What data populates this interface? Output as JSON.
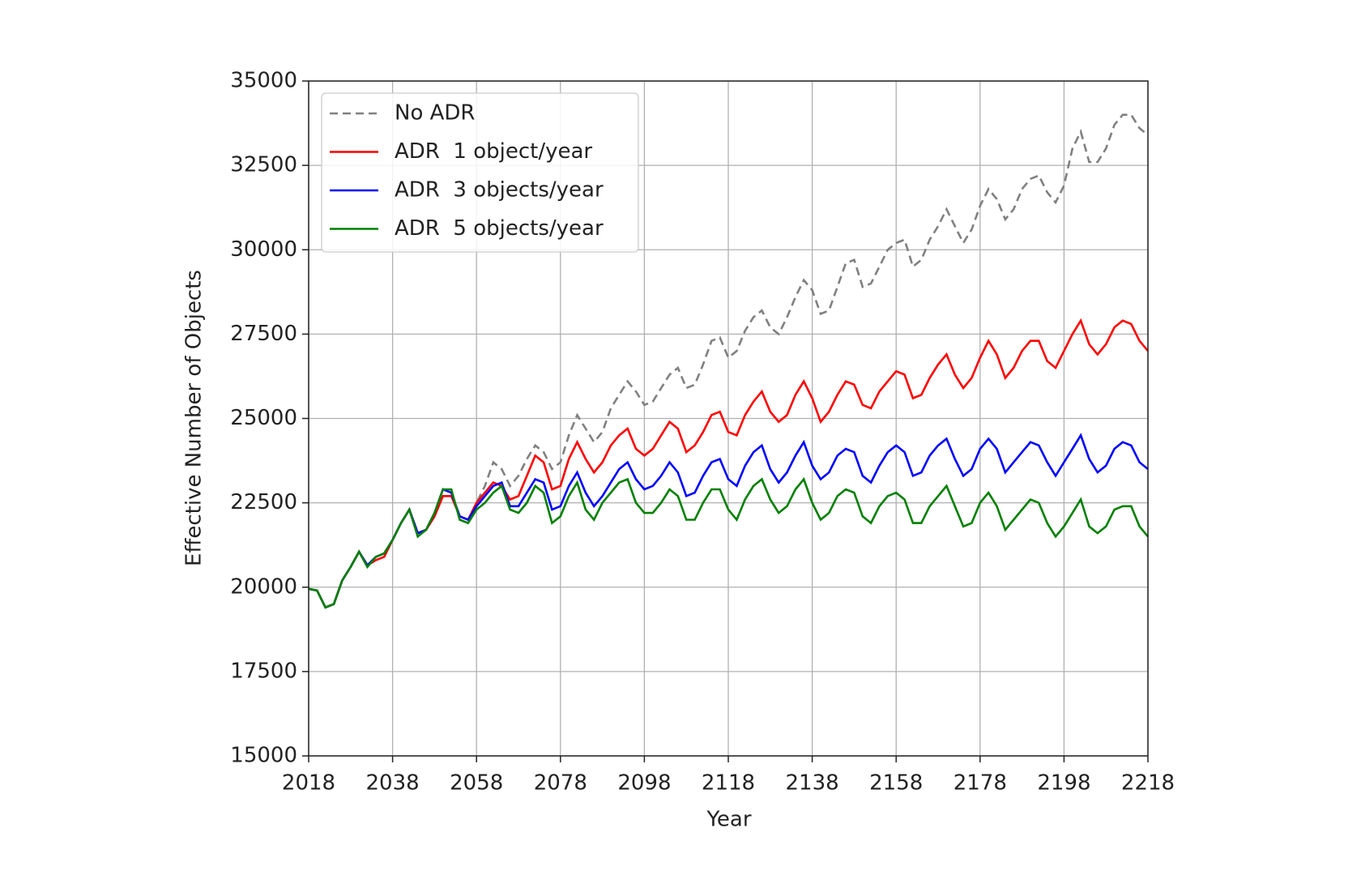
{
  "chart_data": {
    "type": "line",
    "x_label": "Year",
    "y_label": "Effective Number of Objects",
    "x": [
      2018,
      2020,
      2022,
      2024,
      2026,
      2028,
      2030,
      2032,
      2034,
      2036,
      2038,
      2040,
      2042,
      2044,
      2046,
      2048,
      2050,
      2052,
      2054,
      2056,
      2058,
      2060,
      2062,
      2064,
      2066,
      2068,
      2070,
      2072,
      2074,
      2076,
      2078,
      2080,
      2082,
      2084,
      2086,
      2088,
      2090,
      2092,
      2094,
      2096,
      2098,
      2100,
      2102,
      2104,
      2106,
      2108,
      2110,
      2112,
      2114,
      2116,
      2118,
      2120,
      2122,
      2124,
      2126,
      2128,
      2130,
      2132,
      2134,
      2136,
      2138,
      2140,
      2142,
      2144,
      2146,
      2148,
      2150,
      2152,
      2154,
      2156,
      2158,
      2160,
      2162,
      2164,
      2166,
      2168,
      2170,
      2172,
      2174,
      2176,
      2178,
      2180,
      2182,
      2184,
      2186,
      2188,
      2190,
      2192,
      2194,
      2196,
      2198,
      2200,
      2202,
      2204,
      2206,
      2208,
      2210,
      2212,
      2214,
      2216,
      2218
    ],
    "series": [
      {
        "name": "No ADR",
        "color": "#808080",
        "linestyle": "dashed",
        "values": [
          19950,
          19900,
          19400,
          19500,
          20200,
          20600,
          21050,
          20650,
          20900,
          21000,
          21400,
          21900,
          22300,
          21600,
          21700,
          22200,
          22900,
          22800,
          22100,
          22000,
          22500,
          23000,
          23700,
          23500,
          23000,
          23300,
          23800,
          24200,
          24000,
          23500,
          23700,
          24500,
          25100,
          24700,
          24300,
          24600,
          25300,
          25700,
          26100,
          25800,
          25400,
          25500,
          25900,
          26300,
          26500,
          25900,
          26000,
          26600,
          27300,
          27400,
          26800,
          27000,
          27600,
          28000,
          28200,
          27700,
          27500,
          28000,
          28600,
          29100,
          28800,
          28100,
          28200,
          28900,
          29600,
          29700,
          28900,
          29000,
          29500,
          30000,
          30200,
          30300,
          29500,
          29700,
          30300,
          30700,
          31200,
          30700,
          30200,
          30600,
          31300,
          31800,
          31500,
          30900,
          31200,
          31800,
          32100,
          32200,
          31700,
          31400,
          31900,
          33000,
          33500,
          32600,
          32600,
          33000,
          33700,
          34000,
          34000,
          33600,
          33400
        ]
      },
      {
        "name": "ADR  1 object/year",
        "color": "#ff0000",
        "linestyle": "solid",
        "values": [
          19950,
          19900,
          19400,
          19500,
          20200,
          20600,
          21050,
          20650,
          20800,
          20900,
          21400,
          21900,
          22300,
          21600,
          21700,
          22100,
          22700,
          22700,
          22100,
          22000,
          22500,
          22800,
          23100,
          23000,
          22600,
          22700,
          23300,
          23900,
          23700,
          22900,
          23000,
          23800,
          24300,
          23800,
          23400,
          23700,
          24200,
          24500,
          24700,
          24100,
          23900,
          24100,
          24500,
          24900,
          24700,
          24000,
          24200,
          24600,
          25100,
          25200,
          24600,
          24500,
          25100,
          25500,
          25800,
          25200,
          24900,
          25100,
          25700,
          26100,
          25600,
          24900,
          25200,
          25700,
          26100,
          26000,
          25400,
          25300,
          25800,
          26100,
          26400,
          26300,
          25600,
          25700,
          26200,
          26600,
          26900,
          26300,
          25900,
          26200,
          26800,
          27300,
          26900,
          26200,
          26500,
          27000,
          27300,
          27300,
          26700,
          26500,
          27000,
          27500,
          27900,
          27200,
          26900,
          27200,
          27700,
          27900,
          27800,
          27300,
          27000
        ]
      },
      {
        "name": "ADR  3 objects/year",
        "color": "#0000ff",
        "linestyle": "solid",
        "values": [
          19950,
          19900,
          19400,
          19500,
          20200,
          20600,
          21050,
          20650,
          20900,
          21000,
          21400,
          21900,
          22300,
          21600,
          21700,
          22200,
          22900,
          22800,
          22100,
          22000,
          22400,
          22700,
          23000,
          23100,
          22400,
          22400,
          22800,
          23200,
          23100,
          22300,
          22400,
          23000,
          23400,
          22800,
          22400,
          22700,
          23100,
          23500,
          23700,
          23200,
          22900,
          23000,
          23300,
          23700,
          23400,
          22700,
          22800,
          23300,
          23700,
          23800,
          23200,
          23000,
          23600,
          24000,
          24200,
          23500,
          23100,
          23400,
          23900,
          24300,
          23600,
          23200,
          23400,
          23900,
          24100,
          24000,
          23300,
          23100,
          23600,
          24000,
          24200,
          24000,
          23300,
          23400,
          23900,
          24200,
          24400,
          23800,
          23300,
          23500,
          24100,
          24400,
          24100,
          23400,
          23700,
          24000,
          24300,
          24200,
          23700,
          23300,
          23700,
          24100,
          24500,
          23800,
          23400,
          23600,
          24100,
          24300,
          24200,
          23700,
          23500
        ]
      },
      {
        "name": "ADR  5 objects/year",
        "color": "#008000",
        "linestyle": "solid",
        "values": [
          19950,
          19900,
          19400,
          19500,
          20200,
          20600,
          21050,
          20600,
          20900,
          21000,
          21400,
          21900,
          22300,
          21500,
          21700,
          22200,
          22900,
          22900,
          22000,
          21900,
          22300,
          22500,
          22800,
          23000,
          22300,
          22200,
          22500,
          23000,
          22800,
          21900,
          22100,
          22700,
          23100,
          22300,
          22000,
          22500,
          22800,
          23100,
          23200,
          22500,
          22200,
          22200,
          22500,
          22900,
          22700,
          22000,
          22000,
          22500,
          22900,
          22900,
          22300,
          22000,
          22600,
          23000,
          23200,
          22600,
          22200,
          22400,
          22900,
          23200,
          22500,
          22000,
          22200,
          22700,
          22900,
          22800,
          22100,
          21900,
          22400,
          22700,
          22800,
          22600,
          21900,
          21900,
          22400,
          22700,
          23000,
          22400,
          21800,
          21900,
          22500,
          22800,
          22400,
          21700,
          22000,
          22300,
          22600,
          22500,
          21900,
          21500,
          21800,
          22200,
          22600,
          21800,
          21600,
          21800,
          22300,
          22400,
          22400,
          21800,
          21500
        ]
      }
    ],
    "xlim": [
      2018,
      2218
    ],
    "xticks": [
      2018,
      2038,
      2058,
      2078,
      2098,
      2118,
      2138,
      2158,
      2178,
      2198,
      2218
    ],
    "ylim": [
      15000,
      35000
    ],
    "yticks": [
      15000,
      17500,
      20000,
      22500,
      25000,
      27500,
      30000,
      32500,
      35000
    ],
    "grid": true,
    "legend": "upper left"
  }
}
